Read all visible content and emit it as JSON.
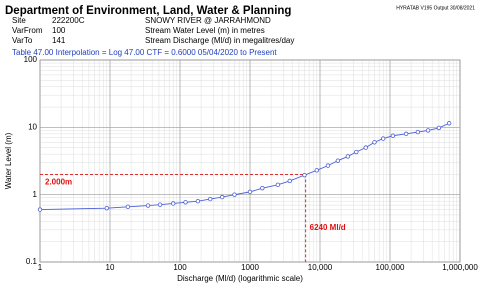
{
  "header": {
    "title": "Department of Environment, Land, Water & Planning",
    "version": "HYRATAB V195  Output 30/08/2021",
    "rows": [
      [
        "Site",
        "222200C",
        "SNOWY RIVER @ JARRAHMOND"
      ],
      [
        "VarFrom",
        "100",
        "Stream Water Level (m) in metres"
      ],
      [
        "VarTo",
        "141",
        "Stream Discharge (Ml/d) in megalitres/day"
      ]
    ],
    "table_line": "Table  47.00  Interpolation = Log  47.00  CTF = 0.6000  05/04/2020 to Present"
  },
  "chart_data": {
    "type": "line",
    "xlabel": "Discharge (Ml/d) (logarithmic scale)",
    "ylabel": "Water Level (m)",
    "xscale": "log",
    "yscale": "log",
    "grid": true,
    "minor_grid": true,
    "xlim": [
      1,
      1000000
    ],
    "ylim": [
      0.1,
      100
    ],
    "xticks": [
      1,
      10,
      100,
      1000,
      {
        "value": 10000,
        "label": "10,000"
      },
      {
        "value": 100000,
        "label": "100,000"
      },
      {
        "value": 1000000,
        "label": "1,000,000"
      }
    ],
    "yticks": [
      0.1,
      1,
      10,
      100
    ],
    "series": [
      {
        "name": "Rating",
        "color": "#4a5fd6",
        "x": [
          1,
          9,
          18,
          35,
          52,
          80,
          120,
          180,
          270,
          400,
          600,
          1000,
          1500,
          2500,
          3700,
          6000,
          9000,
          13000,
          18000,
          25000,
          33000,
          45000,
          60000,
          80000,
          110000,
          170000,
          250000,
          350000,
          500000,
          700000
        ],
        "values": [
          0.6,
          0.63,
          0.66,
          0.69,
          0.71,
          0.74,
          0.77,
          0.8,
          0.86,
          0.92,
          1.0,
          1.1,
          1.25,
          1.4,
          1.6,
          1.95,
          2.3,
          2.7,
          3.2,
          3.7,
          4.3,
          5.0,
          6.0,
          6.8,
          7.5,
          8.0,
          8.5,
          9.0,
          9.8,
          11.5
        ]
      }
    ],
    "reference": {
      "x": 6240,
      "y": 2.0,
      "x_label": "6240 Ml/d",
      "y_label": "2.000m",
      "color": "#e01010"
    }
  }
}
